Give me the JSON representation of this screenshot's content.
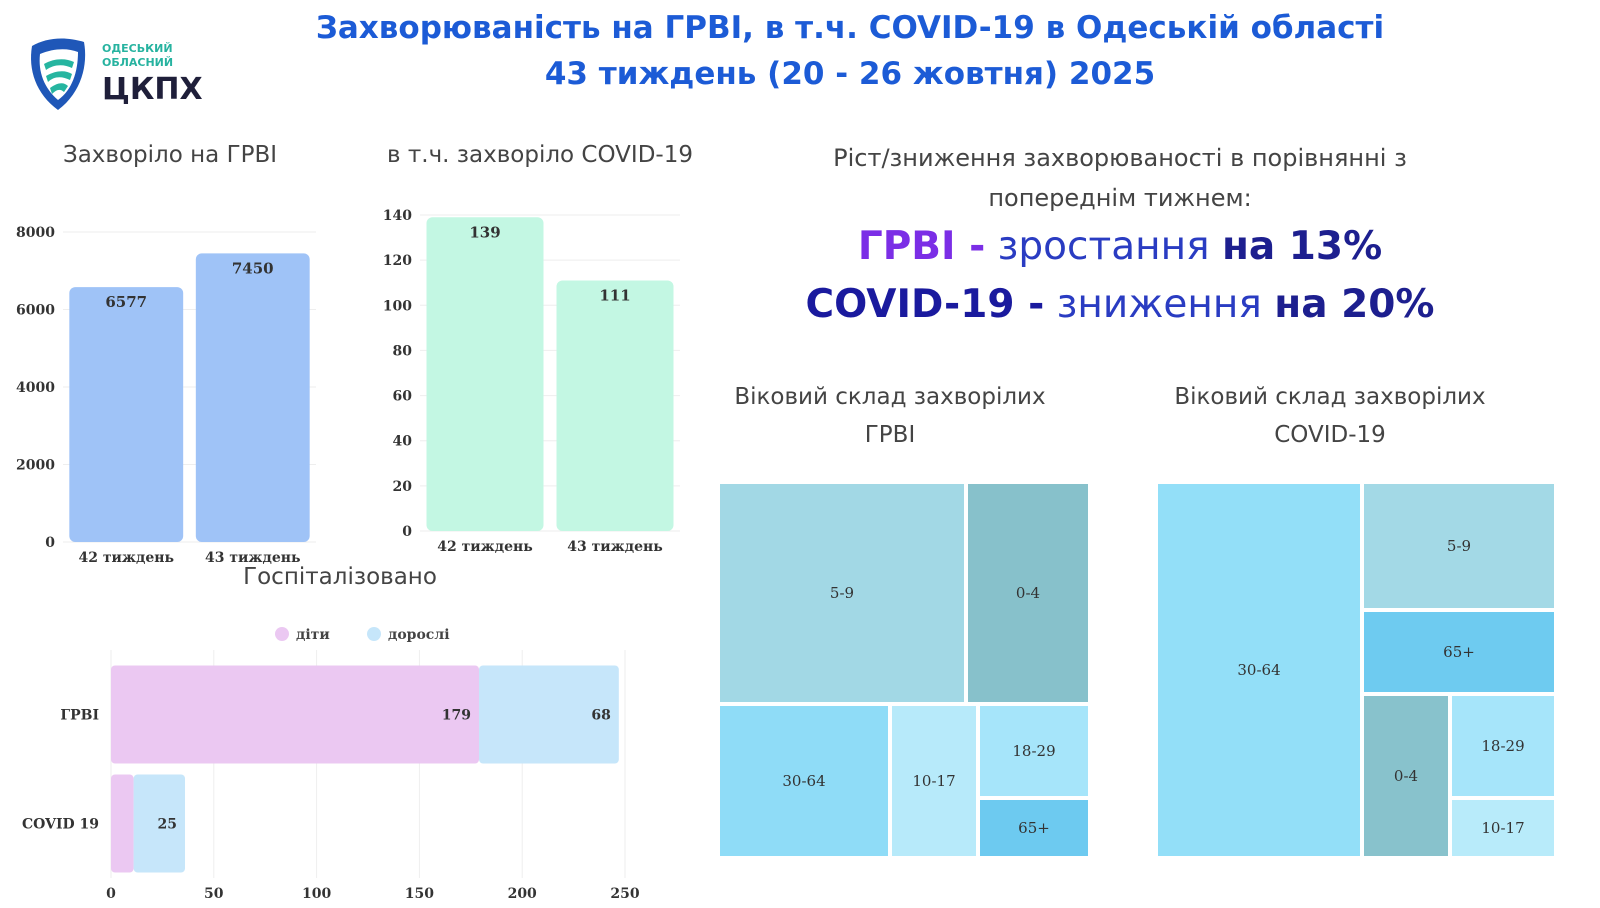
{
  "logo": {
    "line1": "ОДЕСЬКИЙ",
    "line2": "ОБЛАСНИЙ",
    "name": "ЦКПХ"
  },
  "title": {
    "line1": "Захворюваність на ГРВІ, в т.ч. COVID-19 в Одеській області",
    "line2": "43 тиждень (20 - 26 жовтня) 2025"
  },
  "growth": {
    "heading1": "Ріст/зниження захворюваності в порівнянні з",
    "heading2": "попереднім тижнем:",
    "grvi_label": "ГРВІ -",
    "grvi_text": " зростання ",
    "grvi_value": "на 13%",
    "covid_label": "COVID-19 -",
    "covid_text": "  зниження ",
    "covid_value": "на 20%"
  },
  "colors": {
    "grvi_bar": "#9fc3f7",
    "covid_bar": "#c3f7e3",
    "children": "#ebc8f2",
    "adults": "#c6e6fa"
  },
  "chart_data": [
    {
      "id": "grvi",
      "type": "bar",
      "title": "Захворіло на ГРВІ",
      "categories": [
        "42 тиждень",
        "43 тиждень"
      ],
      "values": [
        6577,
        7450
      ],
      "ylim": [
        0,
        8000
      ],
      "yticks": [
        0,
        2000,
        4000,
        6000,
        8000
      ]
    },
    {
      "id": "covid",
      "type": "bar",
      "title": "в т.ч. захворіло COVID-19",
      "categories": [
        "42 тиждень",
        "43 тиждень"
      ],
      "values": [
        139,
        111
      ],
      "ylim": [
        0,
        140
      ],
      "yticks": [
        0,
        20,
        40,
        60,
        80,
        100,
        120,
        140
      ]
    },
    {
      "id": "hosp",
      "type": "bar",
      "orientation": "horizontal",
      "stacked": true,
      "title": "Госпіталізовано",
      "categories": [
        "ГРВІ",
        "COVID 19"
      ],
      "series": [
        {
          "name": "діти",
          "values": [
            179,
            11
          ],
          "labels": [
            "179",
            ""
          ]
        },
        {
          "name": "дорослі",
          "values": [
            68,
            25
          ],
          "labels": [
            "68",
            "25"
          ]
        }
      ],
      "xlim": [
        0,
        250
      ],
      "xticks": [
        0,
        50,
        100,
        150,
        200,
        250
      ],
      "legend": "top"
    },
    {
      "id": "age_grvi",
      "type": "treemap",
      "title": "Віковий склад захворілих ГРВІ",
      "cells": [
        {
          "label": "5-9",
          "color": "#a2d8e5"
        },
        {
          "label": "0-4",
          "color": "#87c1cb"
        },
        {
          "label": "30-64",
          "color": "#8fdcf7"
        },
        {
          "label": "10-17",
          "color": "#b7eafa"
        },
        {
          "label": "18-29",
          "color": "#a6e5fa"
        },
        {
          "label": "65+",
          "color": "#6dcaf0"
        }
      ]
    },
    {
      "id": "age_covid",
      "type": "treemap",
      "title": "Віковий склад захворілих COVID-19",
      "cells": [
        {
          "label": "30-64",
          "color": "#93dff8"
        },
        {
          "label": "5-9",
          "color": "#a3d9e6"
        },
        {
          "label": "65+",
          "color": "#6ecbf0"
        },
        {
          "label": "0-4",
          "color": "#88c2cc"
        },
        {
          "label": "18-29",
          "color": "#a6e5fa"
        },
        {
          "label": "10-17",
          "color": "#b8ebfa"
        }
      ]
    }
  ]
}
